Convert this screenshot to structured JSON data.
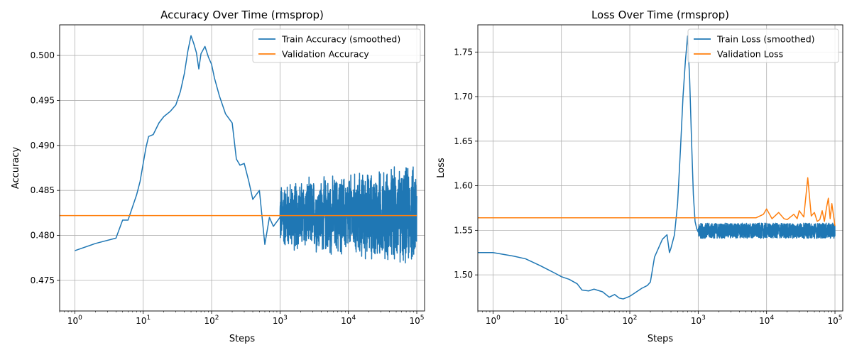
{
  "chart_data": [
    {
      "type": "line",
      "title": "Accuracy Over Time (rmsprop)",
      "xlabel": "Steps",
      "ylabel": "Accuracy",
      "xscale": "log",
      "xlim": [
        0.6,
        130000
      ],
      "ylim": [
        0.4716,
        0.5034
      ],
      "xticks": [
        1,
        10,
        100,
        1000,
        10000,
        100000
      ],
      "xtick_labels": [
        {
          "base": "10",
          "exp": "0"
        },
        {
          "base": "10",
          "exp": "1"
        },
        {
          "base": "10",
          "exp": "2"
        },
        {
          "base": "10",
          "exp": "3"
        },
        {
          "base": "10",
          "exp": "4"
        },
        {
          "base": "10",
          "exp": "5"
        }
      ],
      "yticks": [
        0.475,
        0.48,
        0.485,
        0.49,
        0.495,
        0.5
      ],
      "ytick_labels": [
        "0.475",
        "0.480",
        "0.485",
        "0.490",
        "0.495",
        "0.500"
      ],
      "grid": true,
      "legend_position": "top-right",
      "series": [
        {
          "name": "Train Accuracy (smoothed)",
          "color": "#1f77b4",
          "x": [
            1,
            2,
            4,
            5,
            6,
            7,
            8,
            9,
            10,
            11,
            12,
            14,
            17,
            20,
            25,
            30,
            35,
            40,
            45,
            50,
            55,
            60,
            65,
            70,
            80,
            90,
            100,
            110,
            130,
            160,
            200,
            230,
            260,
            300,
            350,
            400,
            500,
            600,
            700,
            800,
            1000
          ],
          "y": [
            0.4783,
            0.4791,
            0.4797,
            0.4817,
            0.4817,
            0.4832,
            0.4845,
            0.486,
            0.488,
            0.4898,
            0.491,
            0.4912,
            0.4925,
            0.4932,
            0.4938,
            0.4945,
            0.496,
            0.498,
            0.5005,
            0.5022,
            0.5013,
            0.5003,
            0.4985,
            0.5002,
            0.501,
            0.4998,
            0.499,
            0.4975,
            0.4955,
            0.4935,
            0.4925,
            0.4885,
            0.4878,
            0.488,
            0.486,
            0.484,
            0.485,
            0.479,
            0.482,
            0.481,
            0.482
          ],
          "noisy_tail": {
            "x_range": [
              1000,
              100000
            ],
            "center": 0.4822,
            "amplitude_start": 0.004,
            "amplitude_end": 0.0062
          }
        },
        {
          "name": "Validation Accuracy",
          "color": "#ff7f0e",
          "x": [
            0.6,
            100000
          ],
          "y": [
            0.4822,
            0.4822
          ]
        }
      ]
    },
    {
      "type": "line",
      "title": "Loss Over Time (rmsprop)",
      "xlabel": "Steps",
      "ylabel": "Loss",
      "xscale": "log",
      "xlim": [
        0.6,
        130000
      ],
      "ylim": [
        1.4595,
        1.7805
      ],
      "xticks": [
        1,
        10,
        100,
        1000,
        10000,
        100000
      ],
      "xtick_labels": [
        {
          "base": "10",
          "exp": "0"
        },
        {
          "base": "10",
          "exp": "1"
        },
        {
          "base": "10",
          "exp": "2"
        },
        {
          "base": "10",
          "exp": "3"
        },
        {
          "base": "10",
          "exp": "4"
        },
        {
          "base": "10",
          "exp": "5"
        }
      ],
      "yticks": [
        1.5,
        1.55,
        1.6,
        1.65,
        1.7,
        1.75
      ],
      "ytick_labels": [
        "1.50",
        "1.55",
        "1.60",
        "1.65",
        "1.70",
        "1.75"
      ],
      "grid": true,
      "legend_position": "top-right",
      "series": [
        {
          "name": "Train Loss (smoothed)",
          "color": "#1f77b4",
          "x": [
            0.6,
            1,
            2,
            3,
            5,
            8,
            10,
            13,
            17,
            20,
            25,
            30,
            40,
            50,
            60,
            70,
            80,
            100,
            120,
            150,
            180,
            200,
            230,
            300,
            350,
            380,
            400,
            450,
            500,
            550,
            600,
            650,
            700,
            750,
            800,
            850,
            900,
            950,
            1000
          ],
          "y": [
            1.525,
            1.525,
            1.521,
            1.518,
            1.51,
            1.502,
            1.498,
            1.495,
            1.49,
            1.483,
            1.482,
            1.484,
            1.481,
            1.475,
            1.478,
            1.474,
            1.473,
            1.476,
            1.48,
            1.485,
            1.488,
            1.492,
            1.52,
            1.54,
            1.545,
            1.525,
            1.53,
            1.545,
            1.58,
            1.64,
            1.7,
            1.74,
            1.768,
            1.72,
            1.65,
            1.59,
            1.56,
            1.552,
            1.548
          ]
        },
        {
          "name": "Validation Loss",
          "color": "#ff7f0e",
          "x": [
            0.6,
            7000,
            9000,
            10000,
            12000,
            15000,
            18000,
            20000,
            25000,
            28000,
            30000,
            35000,
            40000,
            45000,
            50000,
            55000,
            60000,
            65000,
            70000,
            75000,
            80000,
            85000,
            90000,
            100000
          ],
          "y": [
            1.564,
            1.564,
            1.568,
            1.574,
            1.563,
            1.57,
            1.563,
            1.562,
            1.568,
            1.563,
            1.572,
            1.565,
            1.609,
            1.566,
            1.57,
            1.56,
            1.562,
            1.572,
            1.56,
            1.575,
            1.586,
            1.563,
            1.58,
            1.555
          ]
        }
      ]
    }
  ]
}
